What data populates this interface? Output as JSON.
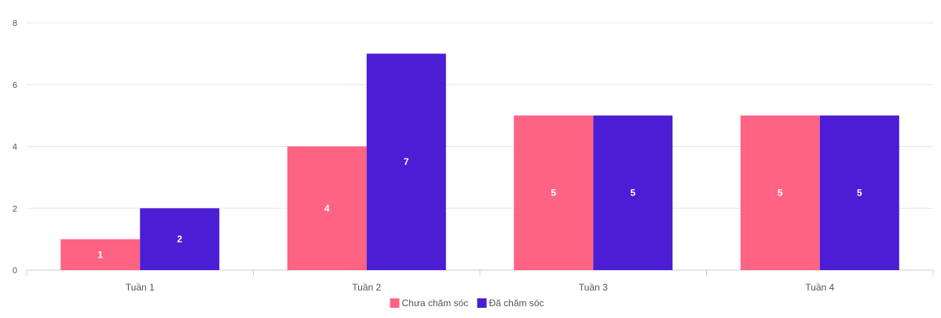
{
  "colors": {
    "series_0": "#ff6384",
    "series_1": "#4b1dd4",
    "grid": "#e5e5e5",
    "axis": "#cccccc",
    "text": "#555555",
    "label": "#ffffff"
  },
  "chart_data": {
    "type": "bar",
    "title": "",
    "xlabel": "",
    "ylabel": "",
    "categories": [
      "Tuần 1",
      "Tuần 2",
      "Tuần 3",
      "Tuần 4"
    ],
    "ylim": [
      0,
      8
    ],
    "yticks": [
      0,
      2,
      4,
      6,
      8
    ],
    "grid": true,
    "legend_position": "bottom",
    "data_labels": true,
    "series": [
      {
        "name": "Chưa chăm sóc",
        "values": [
          1,
          4,
          5,
          5
        ]
      },
      {
        "name": "Đã chăm sóc",
        "values": [
          2,
          7,
          5,
          5
        ]
      }
    ]
  }
}
